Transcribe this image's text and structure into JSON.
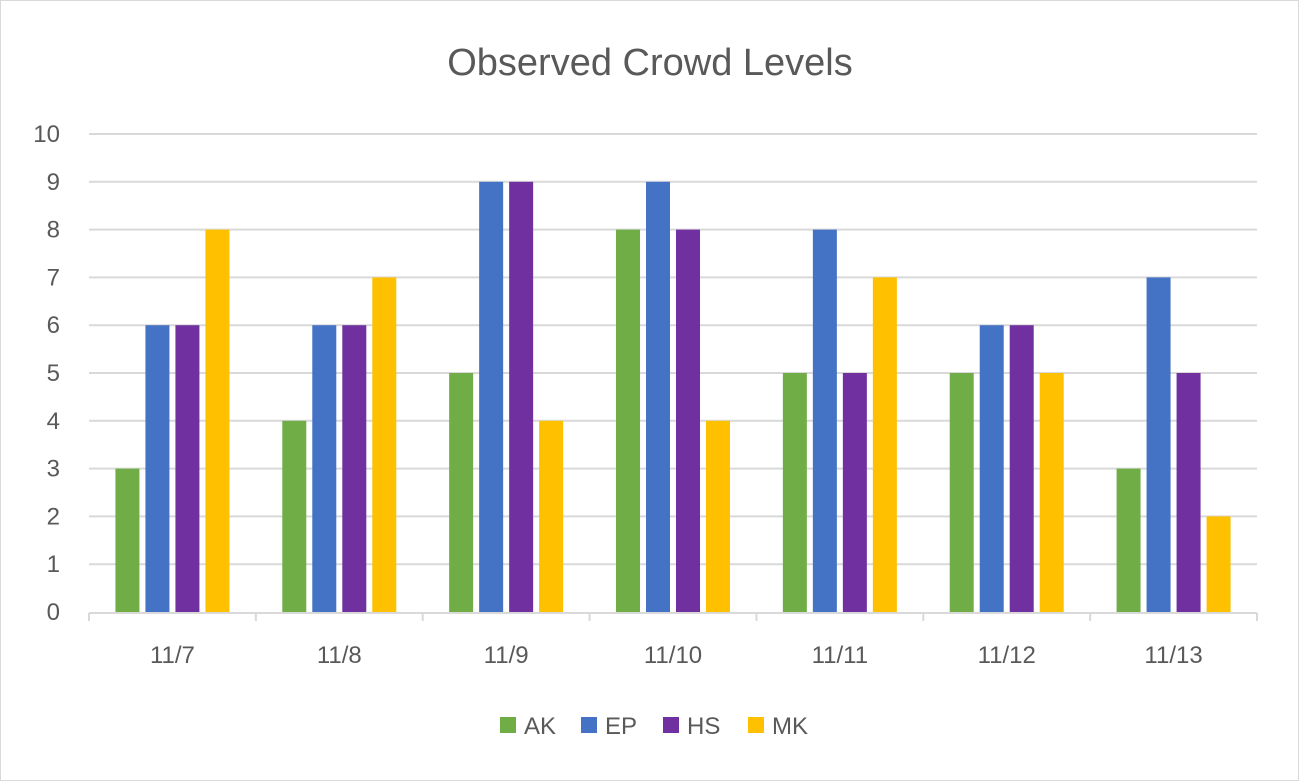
{
  "chart_data": {
    "type": "bar",
    "title": "Observed Crowd Levels",
    "xlabel": "",
    "ylabel": "",
    "categories": [
      "11/7",
      "11/8",
      "11/9",
      "11/10",
      "11/11",
      "11/12",
      "11/13"
    ],
    "ylim": [
      0,
      10
    ],
    "yticks": [
      "0",
      "1",
      "2",
      "3",
      "4",
      "5",
      "6",
      "7",
      "8",
      "9",
      "10"
    ],
    "grid": true,
    "legend_position": "bottom",
    "series": [
      {
        "name": "AK",
        "color": "#70ad47",
        "values": [
          3,
          4,
          5,
          8,
          5,
          5,
          3
        ]
      },
      {
        "name": "EP",
        "color": "#4472c4",
        "values": [
          6,
          6,
          9,
          9,
          8,
          6,
          7
        ]
      },
      {
        "name": "HS",
        "color": "#7030a0",
        "values": [
          6,
          6,
          9,
          8,
          5,
          6,
          5
        ]
      },
      {
        "name": "MK",
        "color": "#ffc000",
        "values": [
          8,
          7,
          4,
          4,
          7,
          5,
          2
        ]
      }
    ]
  }
}
